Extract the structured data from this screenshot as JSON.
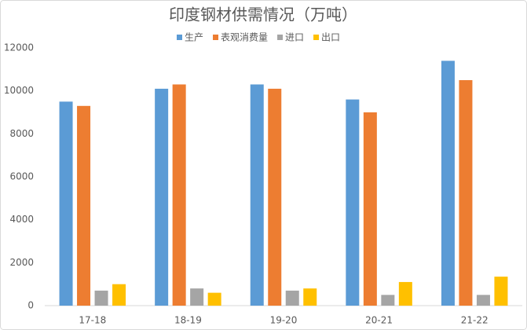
{
  "chart_data": {
    "type": "bar",
    "title": "印度钢材供需情况（万吨）",
    "categories": [
      "17-18",
      "18-19",
      "19-20",
      "20-21",
      "21-22"
    ],
    "series": [
      {
        "name": "生产",
        "color": "#5b9bd5",
        "values": [
          9500,
          10100,
          10300,
          9600,
          11400
        ]
      },
      {
        "name": "表观消费量",
        "color": "#ed7d31",
        "values": [
          9300,
          10300,
          10100,
          9000,
          10500
        ]
      },
      {
        "name": "进口",
        "color": "#a5a5a5",
        "values": [
          700,
          800,
          700,
          500,
          500
        ]
      },
      {
        "name": "出口",
        "color": "#ffc000",
        "values": [
          1000,
          600,
          800,
          1100,
          1350
        ]
      }
    ],
    "ylim": [
      0,
      12000
    ],
    "yticks": [
      0,
      2000,
      4000,
      6000,
      8000,
      10000,
      12000
    ],
    "grid": false,
    "legend": "top"
  }
}
